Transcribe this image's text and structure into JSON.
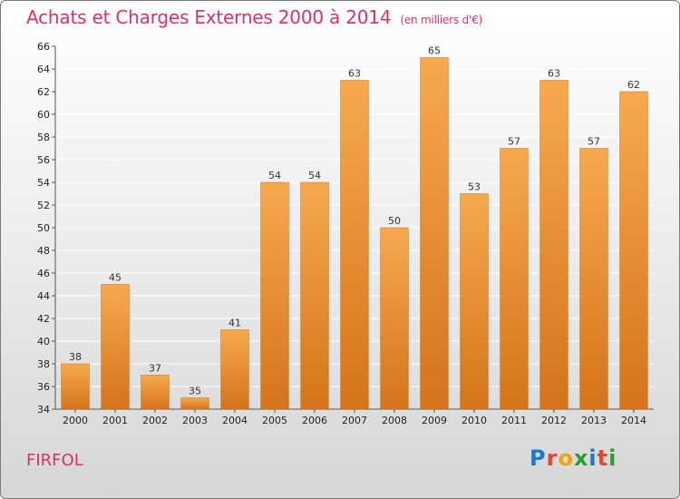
{
  "header": {
    "title": "Achats et Charges Externes 2000 à 2014",
    "subtitle": "(en milliers d'€)"
  },
  "footer": {
    "location": "FIRFOL",
    "logo": {
      "letters": [
        "P",
        "r",
        "o",
        "x",
        "i",
        "t",
        "i"
      ],
      "colors": [
        "#1f77c9",
        "#e8442e",
        "#f2a20c",
        "#2c9c34",
        "#1f77c9",
        "#e8442e",
        "#2c9c34"
      ]
    }
  },
  "colors": {
    "bar_light": "#f7a94e",
    "bar_dark": "#d5741a",
    "bar_stroke": "#c06a16",
    "grid": "#ffffff"
  },
  "chart_data": {
    "type": "bar",
    "categories": [
      "2000",
      "2001",
      "2002",
      "2003",
      "2004",
      "2005",
      "2006",
      "2007",
      "2008",
      "2009",
      "2010",
      "2011",
      "2012",
      "2013",
      "2014"
    ],
    "values": [
      38,
      45,
      37,
      35,
      41,
      54,
      54,
      63,
      50,
      65,
      53,
      57,
      63,
      57,
      62
    ],
    "ylim": [
      34,
      66
    ],
    "yticks": [
      34,
      36,
      38,
      40,
      42,
      44,
      46,
      48,
      50,
      52,
      54,
      56,
      58,
      60,
      62,
      64,
      66
    ],
    "grid": true,
    "data_labels": true
  }
}
